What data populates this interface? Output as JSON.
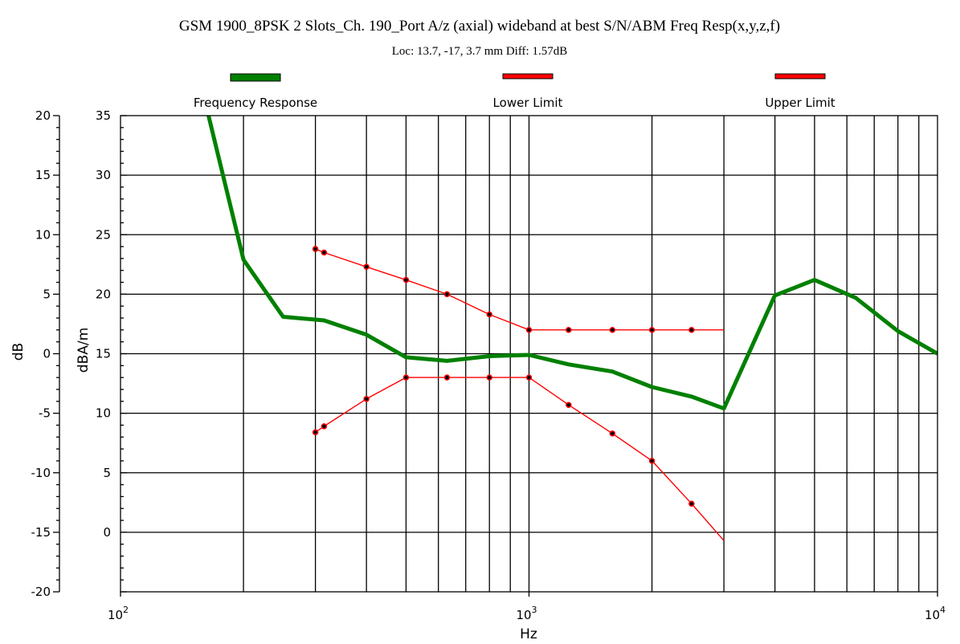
{
  "chart_data": {
    "type": "line",
    "title": "GSM 1900_8PSK 2 Slots_Ch. 190_Port A/z (axial) wideband at best S/N/ABM Freq Resp(x,y,z,f)",
    "subtitle": "Loc: 13.7, -17, 3.7 mm Diff: 1.57dB",
    "xlabel": "Hz",
    "ylabel_left": "dB",
    "ylabel_inner": "dBA/m",
    "xscale": "log",
    "xlim": [
      100,
      10000
    ],
    "ylim_left": [
      -20,
      20
    ],
    "ylim_inner": [
      -5,
      35
    ],
    "grid": true,
    "legend_position": "top",
    "x_tick_labels": [
      {
        "base": "10",
        "exp": "2"
      },
      {
        "base": "10",
        "exp": "3"
      },
      {
        "base": "10",
        "exp": "4"
      }
    ],
    "left_tick_labels": [
      "20",
      "15",
      "10",
      "5",
      "0",
      "-5",
      "-10",
      "-15",
      "-20"
    ],
    "inner_tick_labels": [
      "35",
      "30",
      "25",
      "20",
      "15",
      "10",
      "5",
      "0"
    ],
    "series": [
      {
        "name": "Frequency Response",
        "color": "#008000",
        "markers": false,
        "x": [
          164,
          200,
          250,
          315,
          400,
          500,
          630,
          800,
          1000,
          1250,
          1600,
          2000,
          2500,
          3000,
          4000,
          5000,
          6300,
          8000,
          10000
        ],
        "y": [
          20.1,
          7.9,
          3.1,
          2.8,
          1.6,
          -0.3,
          -0.6,
          -0.2,
          -0.1,
          -0.9,
          -1.5,
          -2.8,
          -3.6,
          -4.6,
          4.9,
          6.2,
          4.7,
          1.9,
          0.0
        ]
      },
      {
        "name": "Lower Limit",
        "color": "#ff0000",
        "markers": true,
        "x": [
          300,
          315,
          400,
          500,
          630,
          800,
          1000,
          1250,
          1600,
          2000,
          2500,
          3000
        ],
        "y": [
          -6.6,
          -6.1,
          -3.8,
          -2.0,
          -2.0,
          -2.0,
          -2.0,
          -4.3,
          -6.7,
          -9.0,
          -12.6,
          -15.7
        ]
      },
      {
        "name": "Upper Limit",
        "color": "#ff0000",
        "markers": true,
        "x": [
          300,
          315,
          400,
          500,
          630,
          800,
          1000,
          1250,
          1600,
          2000,
          2500,
          3000
        ],
        "y": [
          8.8,
          8.5,
          7.3,
          6.2,
          5.0,
          3.3,
          2.0,
          2.0,
          2.0,
          2.0,
          2.0,
          2.0
        ]
      }
    ]
  }
}
